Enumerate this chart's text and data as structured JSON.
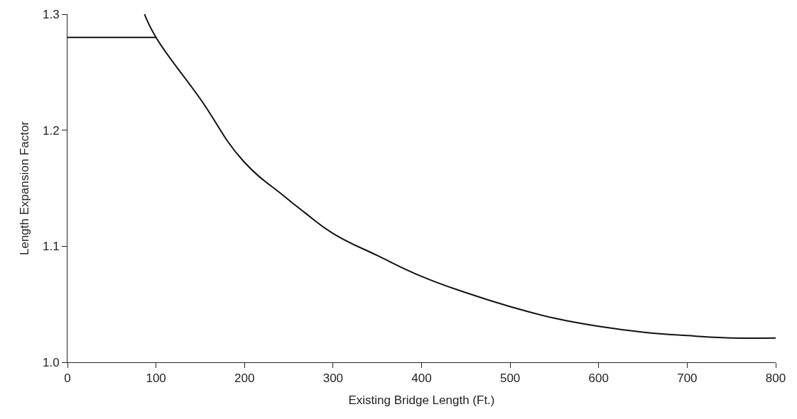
{
  "chart_data": {
    "type": "line",
    "xlabel": "Existing Bridge Length (Ft.)",
    "ylabel": "Length Expansion Factor",
    "xlim": [
      0,
      800
    ],
    "xticks": [
      0,
      100,
      200,
      300,
      400,
      500,
      600,
      700,
      800
    ],
    "ylim": [
      1.0,
      1.3
    ],
    "yticks": [
      {
        "value": 1.0,
        "label": "1.0"
      },
      1.1,
      1.2,
      1.3
    ],
    "marker": "none",
    "line_style": "solid",
    "series": [
      {
        "color": "#111111",
        "x": [
          87,
          100,
          150,
          198,
          245,
          268,
          300,
          350,
          400,
          450,
          500,
          550,
          600,
          650,
          700,
          750,
          800
        ],
        "values": [
          1.3,
          1.28,
          1.227,
          1.174,
          1.143,
          1.129,
          1.111,
          1.092,
          1.074,
          1.06,
          1.048,
          1.038,
          1.031,
          1.026,
          1.023,
          1.021,
          1.021
        ]
      },
      {
        "color": "#111111",
        "x": [
          0,
          100
        ],
        "values": [
          1.28,
          1.28
        ]
      }
    ]
  }
}
